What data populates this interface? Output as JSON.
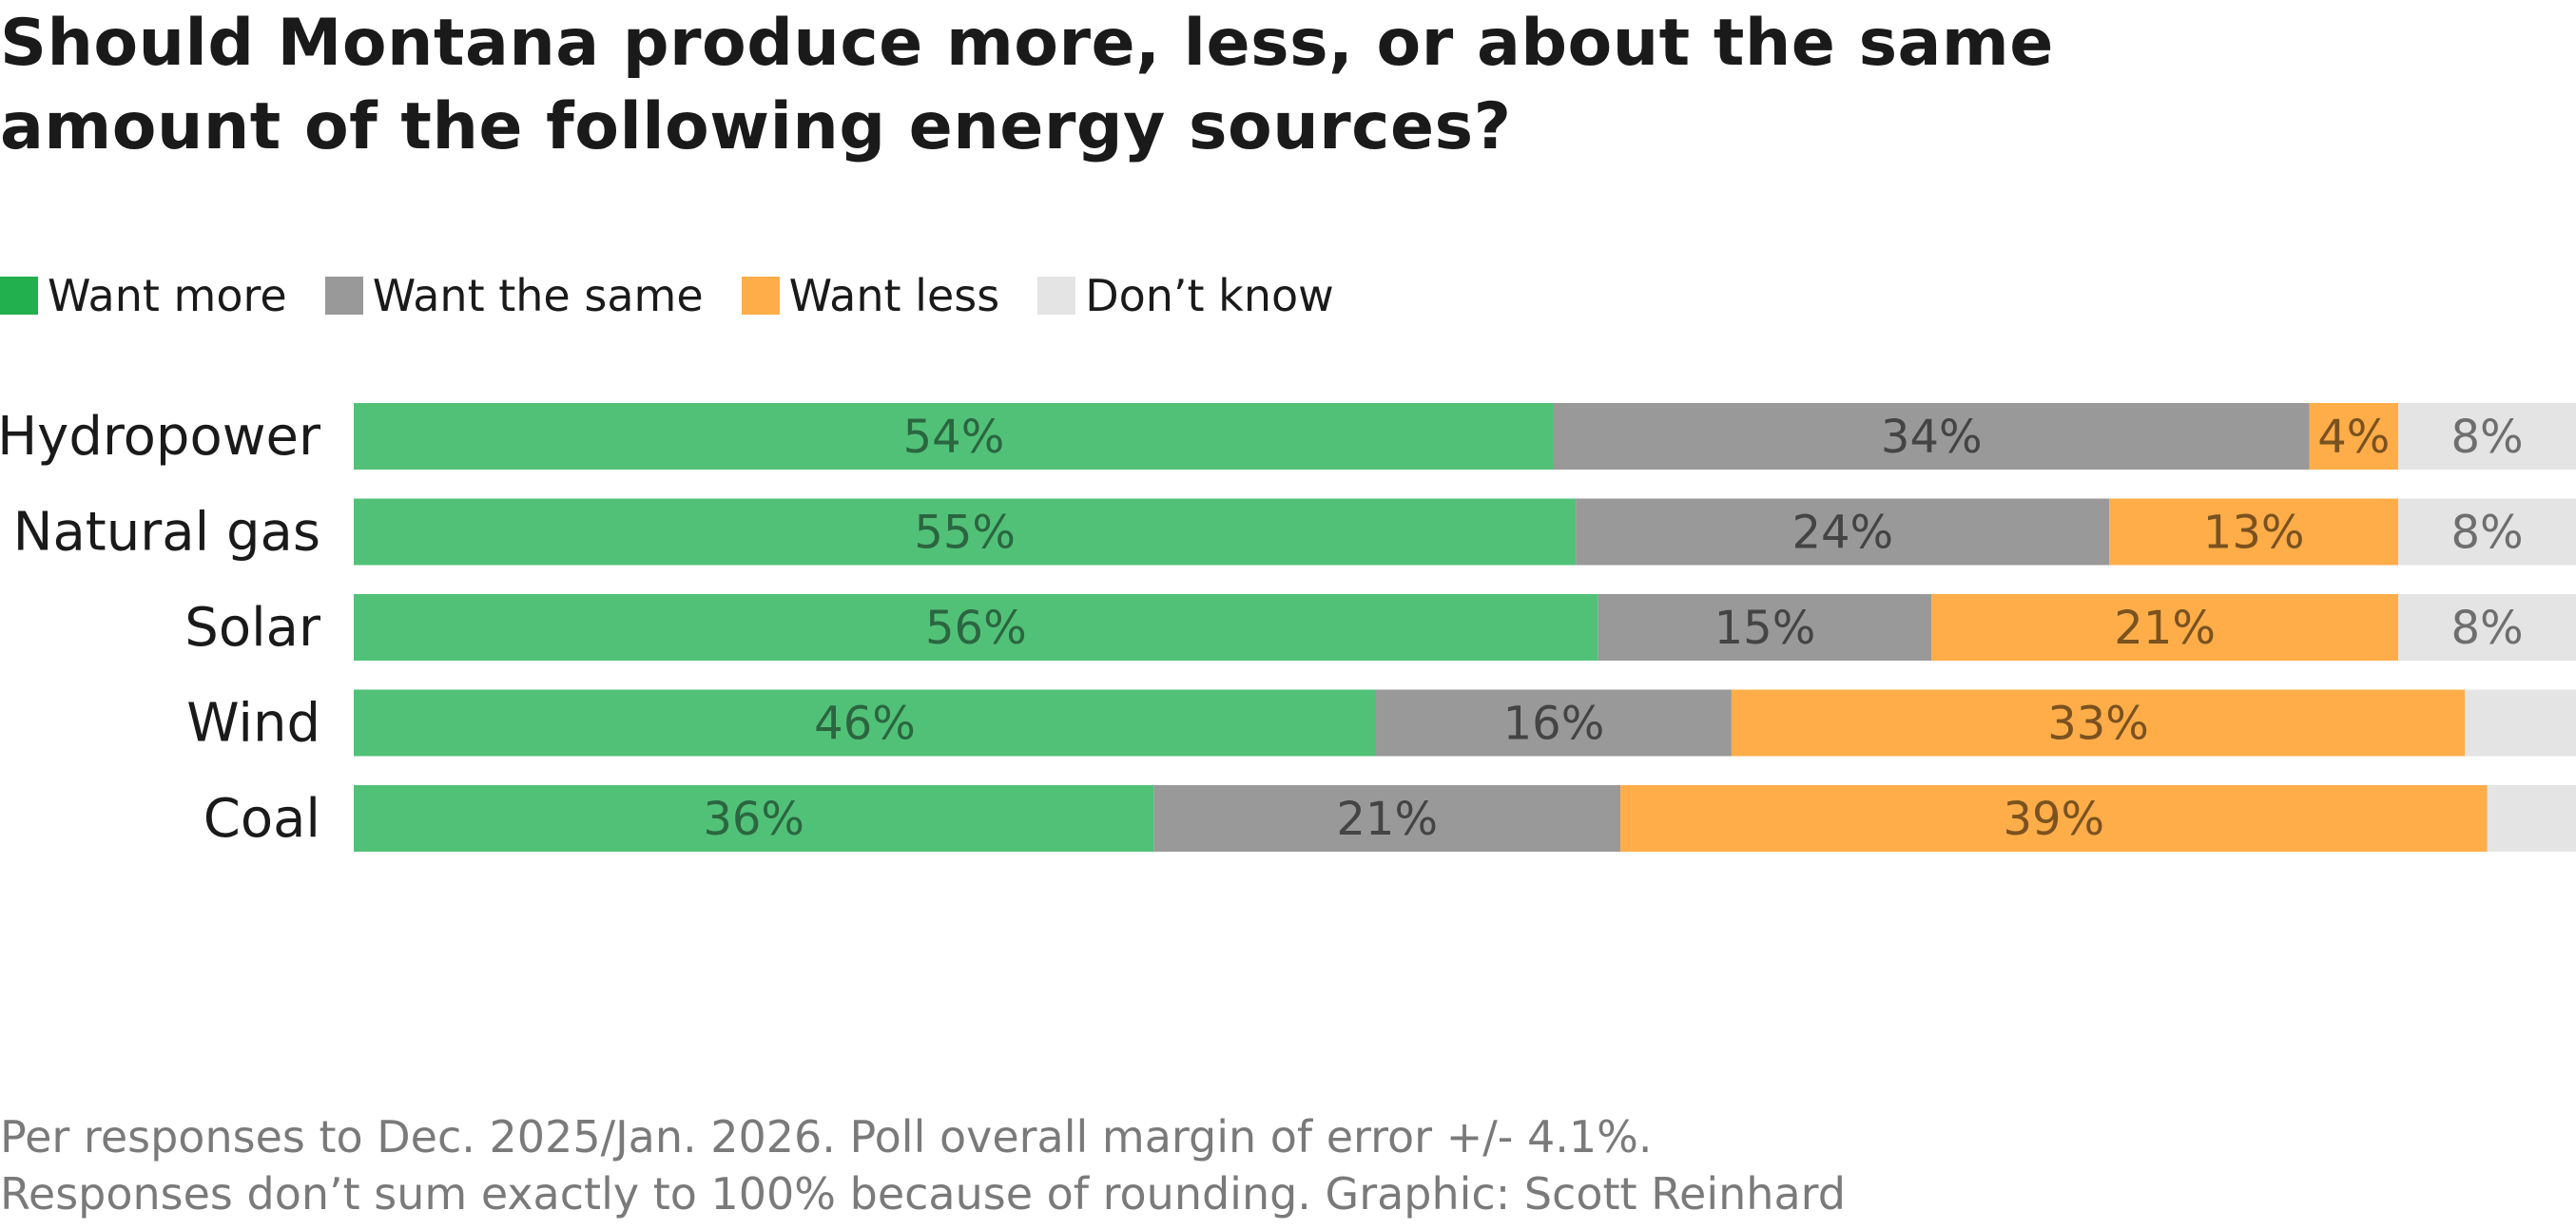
{
  "title_lines": [
    "Should Montana produce more, less, or about the same",
    "amount of the following energy sources?"
  ],
  "legend": [
    {
      "label": "Want more",
      "color": "#22b04e"
    },
    {
      "label": "Want the same",
      "color": "#999999"
    },
    {
      "label": "Want less",
      "color": "#ffad49"
    },
    {
      "label": "Don’t know",
      "color": "#e4e4e4"
    }
  ],
  "footer_lines": [
    "Per responses to Dec. 2025/Jan. 2026. Poll overall margin of error +/- 4.1%.",
    "Responses don’t sum exactly  to 100% because of rounding. Graphic: Scott Reinhard"
  ],
  "chart_data": {
    "type": "bar",
    "orientation": "horizontal",
    "stacked": true,
    "title": "Should Montana produce more, less, or about the same amount of the following energy sources?",
    "xlabel": "",
    "ylabel": "",
    "xlim": [
      0,
      100
    ],
    "grid": false,
    "legend_position": "top-left",
    "categories": [
      "Hydropower",
      "Natural gas",
      "Solar",
      "Wind",
      "Coal"
    ],
    "series": [
      {
        "name": "Want more",
        "color": "#52c178",
        "label_color": "#2b6640",
        "values": [
          54,
          55,
          56,
          46,
          36
        ],
        "labels": [
          "54%",
          "55%",
          "56%",
          "46%",
          "36%"
        ]
      },
      {
        "name": "Want the same",
        "color": "#999999",
        "label_color": "#444444",
        "values": [
          34,
          24,
          15,
          16,
          21
        ],
        "labels": [
          "34%",
          "24%",
          "15%",
          "16%",
          "21%"
        ]
      },
      {
        "name": "Want less",
        "color": "#ffad49",
        "label_color": "#7a5220",
        "values": [
          4,
          13,
          21,
          33,
          39
        ],
        "labels": [
          "4%",
          "13%",
          "21%",
          "33%",
          "39%"
        ]
      },
      {
        "name": "Don’t know",
        "color": "#e4e4e4",
        "label_color": "#6e6e6e",
        "values": [
          8,
          8,
          8,
          5,
          4
        ],
        "labels": [
          "8%",
          "8%",
          "8%",
          "",
          ""
        ]
      }
    ]
  }
}
